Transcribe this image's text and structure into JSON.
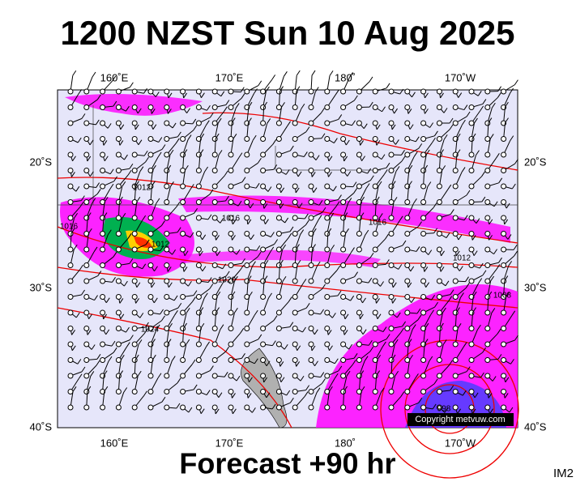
{
  "header": {
    "title": "1200 NZST Sun 10 Aug 2025"
  },
  "map": {
    "lon_labels": [
      "160˚E",
      "170˚E",
      "180˚",
      "170˚W"
    ],
    "lat_labels": [
      "20˚S",
      "30˚S",
      "40˚S"
    ],
    "isobar_labels": [
      "1012",
      "1016",
      "1016",
      "1012",
      "1016",
      "1020",
      "1024",
      "1012",
      "1008",
      "998"
    ],
    "copyright": "Copyright metvuw.com"
  },
  "footer": {
    "forecast": "Forecast +90 hr",
    "model": "IM2"
  }
}
